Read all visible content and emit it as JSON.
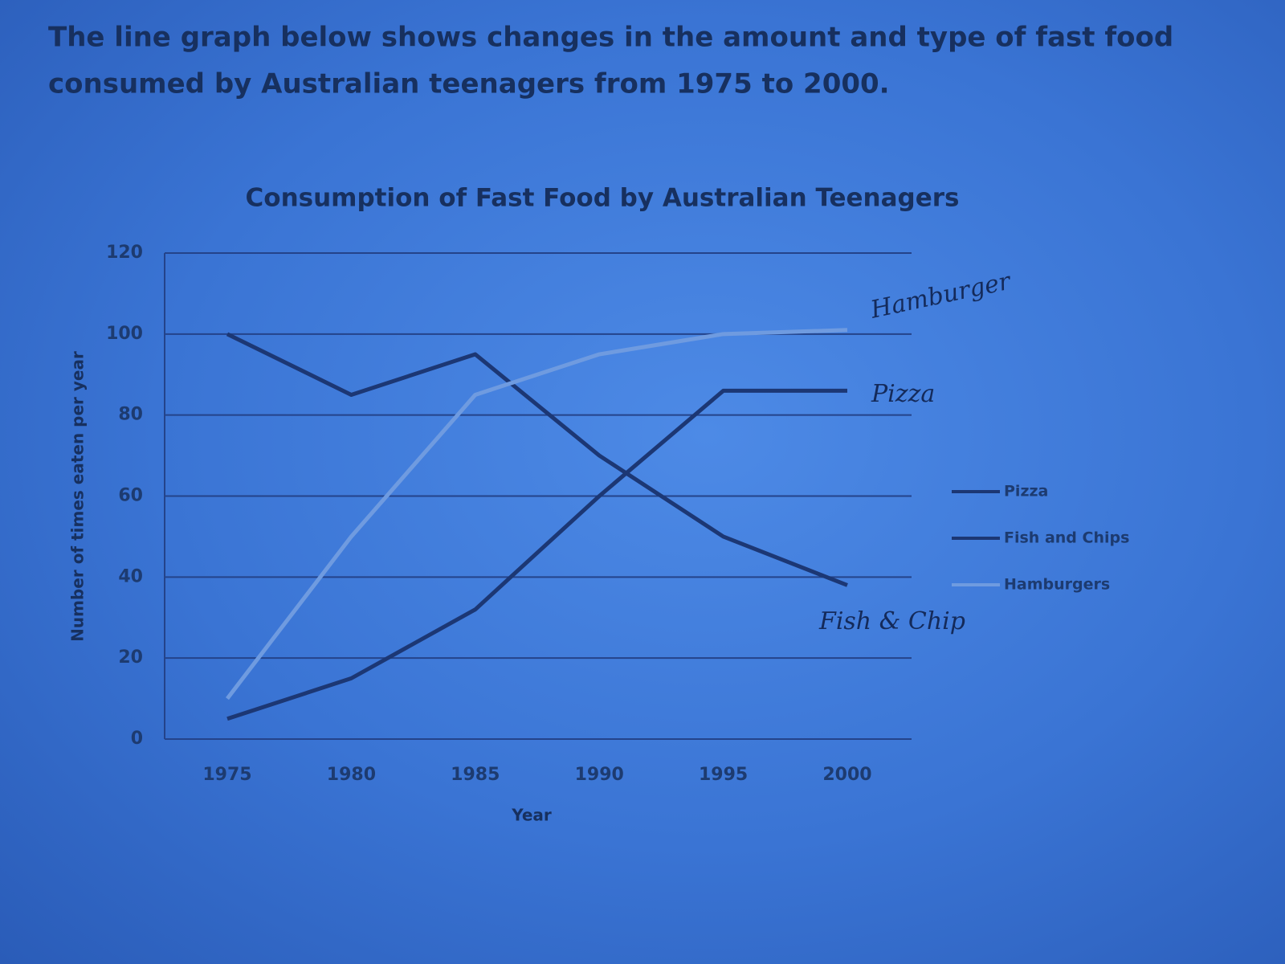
{
  "heading": "The line graph below shows changes in the amount and type of fast food consumed by Australian teenagers from 1975 to 2000.",
  "chart_data": {
    "type": "line",
    "title": "Consumption of Fast Food by Australian Teenagers",
    "x_label": "Year",
    "y_label": "Number of times eaten per year",
    "categories": [
      "1975",
      "1980",
      "1985",
      "1990",
      "1995",
      "2000"
    ],
    "series": [
      {
        "name": "Pizza",
        "color": "#1c3774",
        "values": [
          5,
          15,
          32,
          60,
          86,
          86
        ]
      },
      {
        "name": "Fish and Chips",
        "color": "#1c3774",
        "values": [
          100,
          85,
          95,
          70,
          50,
          38
        ]
      },
      {
        "name": "Hamburgers",
        "color": "#6f9be0",
        "values": [
          10,
          50,
          85,
          95,
          100,
          101
        ]
      }
    ],
    "ylim": [
      0,
      120
    ],
    "yticks": [
      0,
      20,
      40,
      60,
      80,
      100,
      120
    ],
    "grid": true,
    "legend": "right",
    "annotations": [
      "Hamburger",
      "Pizza",
      "Fish & Chip"
    ]
  }
}
